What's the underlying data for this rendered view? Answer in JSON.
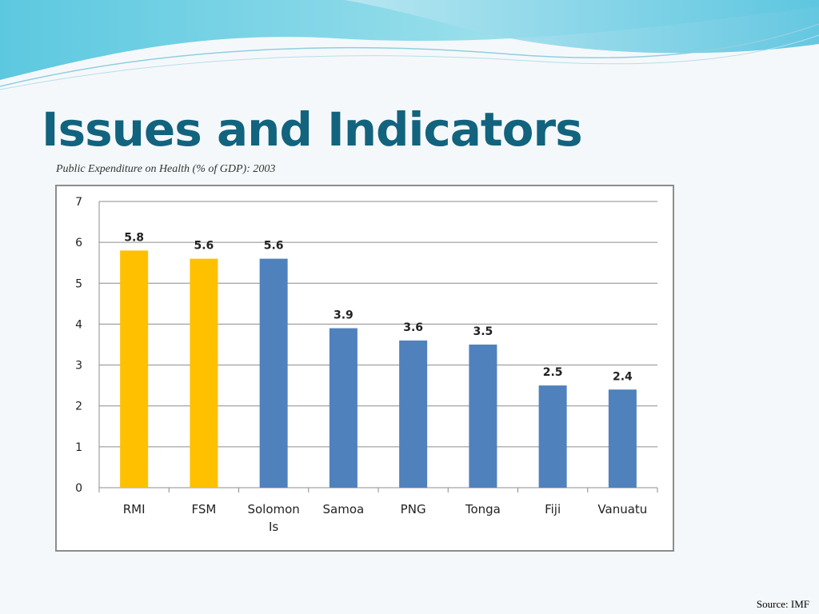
{
  "slide": {
    "title": "Issues and Indicators",
    "source": "Source: IMF"
  },
  "colors": {
    "title": "#12637e",
    "highlight_bar": "#ffc000",
    "default_bar": "#4f81bd",
    "gridline": "#8c8c8c"
  },
  "chart_data": {
    "type": "bar",
    "title": "Public Expenditure on Health (% of GDP): 2003",
    "xlabel": "",
    "ylabel": "",
    "categories": [
      "RMI",
      "FSM",
      "Solomon Is",
      "Samoa",
      "PNG",
      "Tonga",
      "Fiji",
      "Vanuatu"
    ],
    "values": [
      5.8,
      5.6,
      5.6,
      3.9,
      3.6,
      3.5,
      2.5,
      2.4
    ],
    "value_labels": [
      "5.8",
      "5.6",
      "5.6",
      "3.9",
      "3.6",
      "3.5",
      "2.5",
      "2.4"
    ],
    "bar_colors": [
      "#ffc000",
      "#ffc000",
      "#4f81bd",
      "#4f81bd",
      "#4f81bd",
      "#4f81bd",
      "#4f81bd",
      "#4f81bd"
    ],
    "ylim": [
      0,
      7
    ],
    "yticks": [
      0,
      1,
      2,
      3,
      4,
      5,
      6,
      7
    ],
    "grid": true,
    "legend": "none"
  }
}
